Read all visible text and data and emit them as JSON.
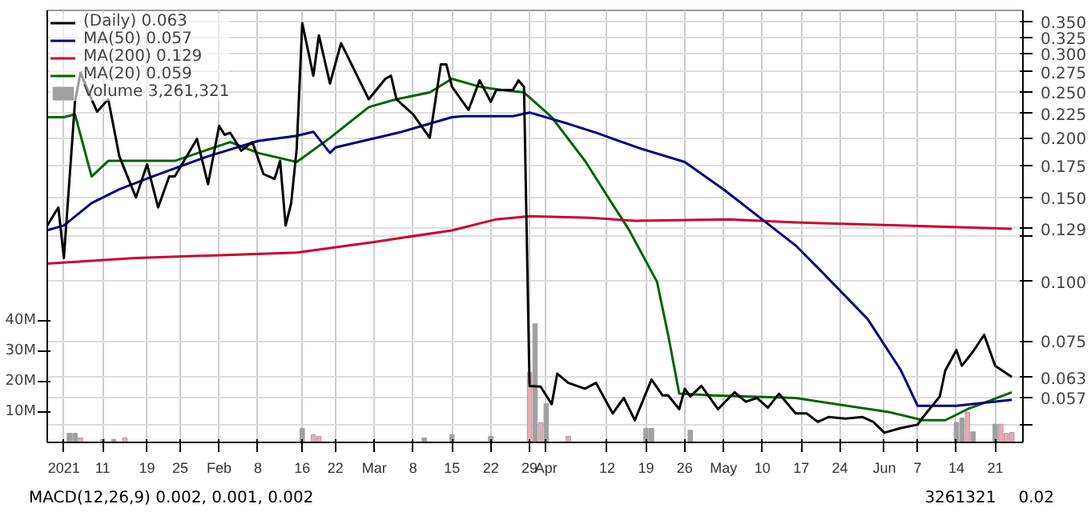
{
  "chart_data": {
    "type": "line",
    "log": "y",
    "grid": true,
    "legend": "top left",
    "xlim": [
      "2021-01-01",
      "2021-06-26"
    ],
    "xticks": [
      {
        "value": "2021-01-04",
        "label": "2021"
      },
      {
        "value": "2021-01-11",
        "label": "11"
      },
      {
        "value": "2021-01-19",
        "label": "19"
      },
      {
        "value": "2021-01-25",
        "label": "25"
      },
      {
        "value": "2021-02-01",
        "label": "Feb"
      },
      {
        "value": "2021-02-08",
        "label": "8"
      },
      {
        "value": "2021-02-16",
        "label": "16"
      },
      {
        "value": "2021-02-22",
        "label": "22"
      },
      {
        "value": "2021-03-01",
        "label": "Mar"
      },
      {
        "value": "2021-03-08",
        "label": "8"
      },
      {
        "value": "2021-03-15",
        "label": "15"
      },
      {
        "value": "2021-03-22",
        "label": "22"
      },
      {
        "value": "2021-03-29",
        "label": "29"
      },
      {
        "value": "2021-04-01",
        "label": "Apr"
      },
      {
        "value": "2021-04-12",
        "label": "12"
      },
      {
        "value": "2021-04-19",
        "label": "19"
      },
      {
        "value": "2021-04-26",
        "label": "26"
      },
      {
        "value": "2021-05-03",
        "label": "May"
      },
      {
        "value": "2021-05-10",
        "label": "10"
      },
      {
        "value": "2021-05-17",
        "label": "17"
      },
      {
        "value": "2021-05-24",
        "label": "24"
      },
      {
        "value": "2021-06-01",
        "label": "Jun"
      },
      {
        "value": "2021-06-07",
        "label": "7"
      },
      {
        "value": "2021-06-14",
        "label": "14"
      },
      {
        "value": "2021-06-21",
        "label": "21"
      }
    ],
    "ylim": [
      0.046,
      0.37
    ],
    "yticks": [
      {
        "value": 0.35,
        "label": "0.350"
      },
      {
        "value": 0.325,
        "label": "0.325"
      },
      {
        "value": 0.3,
        "label": "0.300"
      },
      {
        "value": 0.275,
        "label": "0.275"
      },
      {
        "value": 0.25,
        "label": "0.250"
      },
      {
        "value": 0.225,
        "label": "0.225"
      },
      {
        "value": 0.2,
        "label": "0.200"
      },
      {
        "value": 0.175,
        "label": "0.175"
      },
      {
        "value": 0.15,
        "label": "0.150"
      },
      {
        "value": 0.129,
        "label": "0.129"
      },
      {
        "value": 0.125,
        "label": null
      },
      {
        "value": 0.1,
        "label": "0.100"
      },
      {
        "value": 0.075,
        "label": "0.075"
      },
      {
        "value": 0.063,
        "label": "0.063"
      },
      {
        "value": 0.057,
        "label": "0.057"
      },
      {
        "value": 0.05,
        "label": null
      }
    ],
    "y2lim": [
      0,
      142000000
    ],
    "y2ticks": [
      {
        "value": 10000000,
        "label": "10M"
      },
      {
        "value": 20000000,
        "label": "20M"
      },
      {
        "value": 30000000,
        "label": "30M"
      },
      {
        "value": 40000000,
        "label": "40M"
      }
    ],
    "series": [
      {
        "name": "(Daily) 0.063",
        "color": "#000000",
        "x": [
          "2021-01-01",
          "2021-01-03",
          "2021-01-04",
          "2021-01-06",
          "2021-01-07",
          "2021-01-09",
          "2021-01-10",
          "2021-01-12",
          "2021-01-14",
          "2021-01-17",
          "2021-01-19",
          "2021-01-21",
          "2021-01-23",
          "2021-01-24",
          "2021-01-28",
          "2021-01-30",
          "2021-02-01",
          "2021-02-02",
          "2021-02-03",
          "2021-02-05",
          "2021-02-07",
          "2021-02-09",
          "2021-02-11",
          "2021-02-12",
          "2021-02-13",
          "2021-02-14",
          "2021-02-15",
          "2021-02-16",
          "2021-02-18",
          "2021-02-19",
          "2021-02-21",
          "2021-02-23",
          "2021-02-28",
          "2021-03-03",
          "2021-03-04",
          "2021-03-05",
          "2021-03-08",
          "2021-03-11",
          "2021-03-13",
          "2021-03-14",
          "2021-03-15",
          "2021-03-18",
          "2021-03-20",
          "2021-03-22",
          "2021-03-23",
          "2021-03-26",
          "2021-03-27",
          "2021-03-28",
          "2021-03-29",
          "2021-03-31",
          "2021-04-02",
          "2021-04-03",
          "2021-04-05",
          "2021-04-08",
          "2021-04-10",
          "2021-04-13",
          "2021-04-15",
          "2021-04-17",
          "2021-04-20",
          "2021-04-22",
          "2021-04-23",
          "2021-04-25",
          "2021-04-26",
          "2021-04-27",
          "2021-04-29",
          "2021-05-02",
          "2021-05-05",
          "2021-05-07",
          "2021-05-09",
          "2021-05-11",
          "2021-05-13",
          "2021-05-16",
          "2021-05-18",
          "2021-05-20",
          "2021-05-22",
          "2021-05-25",
          "2021-05-28",
          "2021-05-30",
          "2021-06-01",
          "2021-06-04",
          "2021-06-07",
          "2021-06-08",
          "2021-06-11",
          "2021-06-12",
          "2021-06-14",
          "2021-06-15",
          "2021-06-17",
          "2021-06-19",
          "2021-06-21",
          "2021-06-24"
        ],
        "values": [
          0.131,
          0.143,
          0.112,
          0.238,
          0.274,
          0.241,
          0.227,
          0.241,
          0.183,
          0.15,
          0.176,
          0.143,
          0.166,
          0.166,
          0.199,
          0.16,
          0.212,
          0.203,
          0.205,
          0.188,
          0.196,
          0.168,
          0.164,
          0.179,
          0.131,
          0.146,
          0.19,
          0.348,
          0.27,
          0.328,
          0.26,
          0.316,
          0.241,
          0.266,
          0.27,
          0.241,
          0.224,
          0.2,
          0.285,
          0.285,
          0.256,
          0.229,
          0.264,
          0.238,
          0.252,
          0.252,
          0.264,
          0.256,
          0.0604,
          0.0602,
          0.0553,
          0.0641,
          0.0613,
          0.0596,
          0.0613,
          0.0529,
          0.057,
          0.0512,
          0.0623,
          0.0577,
          0.0577,
          0.054,
          0.0596,
          0.0574,
          0.0604,
          0.054,
          0.0586,
          0.056,
          0.057,
          0.0544,
          0.0582,
          0.0529,
          0.0529,
          0.0508,
          0.052,
          0.0516,
          0.052,
          0.0508,
          0.0482,
          0.0493,
          0.0501,
          0.052,
          0.0574,
          0.0651,
          0.0718,
          0.0666,
          0.0713,
          0.0773,
          0.0666,
          0.0631
        ]
      },
      {
        "name": "MA(50) 0.057",
        "color": "#000080",
        "x": [
          "2021-01-01",
          "2021-01-04",
          "2021-01-09",
          "2021-01-14",
          "2021-01-20",
          "2021-01-30",
          "2021-02-08",
          "2021-02-15",
          "2021-02-18",
          "2021-02-21",
          "2021-02-22",
          "2021-03-06",
          "2021-03-15",
          "2021-03-17",
          "2021-03-26",
          "2021-03-29",
          "2021-04-05",
          "2021-04-10",
          "2021-04-18",
          "2021-04-26",
          "2021-05-03",
          "2021-05-16",
          "2021-05-21",
          "2021-05-29",
          "2021-06-04",
          "2021-06-07",
          "2021-06-14",
          "2021-06-24"
        ],
        "values": [
          0.128,
          0.131,
          0.146,
          0.156,
          0.166,
          0.183,
          0.197,
          0.202,
          0.206,
          0.186,
          0.191,
          0.206,
          0.221,
          0.222,
          0.222,
          0.226,
          0.214,
          0.205,
          0.19,
          0.178,
          0.156,
          0.119,
          0.104,
          0.0834,
          0.0651,
          0.0549,
          0.0549,
          0.0565
        ]
      },
      {
        "name": "MA(200) 0.129",
        "color": "#cc0033",
        "x": [
          "2021-01-01",
          "2021-01-17",
          "2021-02-15",
          "2021-03-01",
          "2021-03-15",
          "2021-03-23",
          "2021-03-29",
          "2021-04-09",
          "2021-04-17",
          "2021-05-04",
          "2021-05-16",
          "2021-06-05",
          "2021-06-24"
        ],
        "values": [
          0.109,
          0.112,
          0.115,
          0.121,
          0.128,
          0.135,
          0.137,
          0.136,
          0.134,
          0.135,
          0.133,
          0.131,
          0.129
        ]
      },
      {
        "name": "MA(20) 0.059",
        "color": "#006400",
        "x": [
          "2021-01-01",
          "2021-01-04",
          "2021-01-06",
          "2021-01-09",
          "2021-01-12",
          "2021-01-24",
          "2021-02-03",
          "2021-02-08",
          "2021-02-15",
          "2021-02-21",
          "2021-02-28",
          "2021-03-05",
          "2021-03-11",
          "2021-03-15",
          "2021-03-20",
          "2021-03-24",
          "2021-03-28",
          "2021-04-02",
          "2021-04-08",
          "2021-04-13",
          "2021-04-16",
          "2021-04-21",
          "2021-04-23",
          "2021-04-25",
          "2021-05-01",
          "2021-05-16",
          "2021-06-02",
          "2021-06-08",
          "2021-06-12",
          "2021-06-16",
          "2021-06-24"
        ],
        "values": [
          0.221,
          0.221,
          0.224,
          0.166,
          0.179,
          0.179,
          0.196,
          0.186,
          0.178,
          0.2,
          0.232,
          0.241,
          0.249,
          0.266,
          0.256,
          0.252,
          0.249,
          0.221,
          0.179,
          0.145,
          0.128,
          0.0998,
          0.0773,
          0.0582,
          0.0577,
          0.057,
          0.0532,
          0.0512,
          0.0512,
          0.054,
          0.0586
        ]
      },
      {
        "name": "Volume 3,261,321",
        "type": "bar",
        "axis": "y2",
        "color": "#a0a0a0",
        "x": [
          "2021-01-05",
          "2021-01-06",
          "2021-01-07",
          "2021-01-11",
          "2021-01-13",
          "2021-01-15",
          "2021-02-16",
          "2021-02-18",
          "2021-02-19",
          "2021-03-10",
          "2021-03-15",
          "2021-03-22",
          "2021-03-29",
          "2021-03-30",
          "2021-03-31",
          "2021-04-01",
          "2021-04-05",
          "2021-04-19",
          "2021-04-20",
          "2021-04-27",
          "2021-06-14",
          "2021-06-15",
          "2021-06-16",
          "2021-06-17",
          "2021-06-21",
          "2021-06-22",
          "2021-06-23",
          "2021-06-24"
        ],
        "values": [
          3000000,
          3000000,
          1500000,
          1000000,
          1000000,
          1500000,
          4600000,
          2500000,
          2000000,
          1500000,
          2500000,
          2000000,
          23000000,
          39000000,
          6500000,
          12700000,
          2000000,
          4600000,
          4600000,
          4000000,
          6600000,
          8000000,
          10000000,
          3500000,
          6000000,
          6000000,
          3000000,
          3261321
        ],
        "colors": [
          "#a0a0a0",
          "#a0a0a0",
          "#f0a8b8",
          "#f0a8b8",
          "#a0a0a0",
          "#f0a8b8",
          "#a0a0a0",
          "#f0a8b8",
          "#f0a8b8",
          "#a0a0a0",
          "#a0a0a0",
          "#a0a0a0",
          "#f0a8b8",
          "#a0a0a0",
          "#f0a8b8",
          "#a0a0a0",
          "#f0a8b8",
          "#a0a0a0",
          "#a0a0a0",
          "#a0a0a0",
          "#a0a0a0",
          "#a0a0a0",
          "#f0a8b8",
          "#a0a0a0",
          "#a0a0a0",
          "#f0a8b8",
          "#f0a8b8",
          "#f0a8b8"
        ]
      }
    ],
    "annotations": [
      "MACD(12,26,9) 0.002, 0.001, 0.002",
      "3261321",
      "0.02"
    ]
  }
}
